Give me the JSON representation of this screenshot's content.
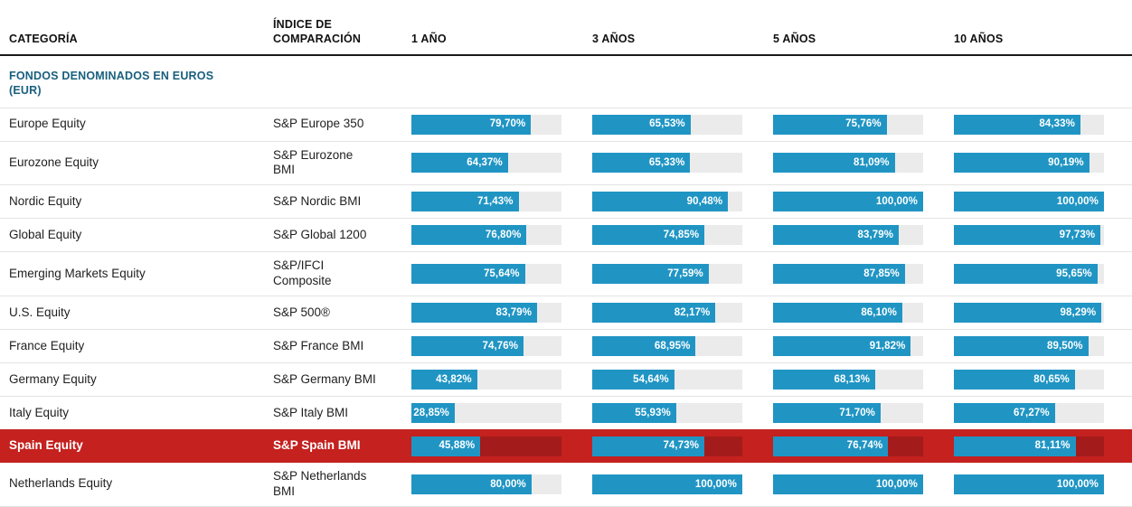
{
  "header": {
    "category_label": "CATEGORÍA",
    "index_label": "ÍNDICE DE COMPARACIÓN",
    "period_labels": [
      "1 AÑO",
      "3 AÑOS",
      "5 AÑOS",
      "10 AÑOS"
    ]
  },
  "section_title": "FONDOS DENOMINADOS EN EUROS (EUR)",
  "chart_data": {
    "type": "bar",
    "subtype": "table-of-horizontal-bars",
    "unit": "%",
    "decimal_separator": ",",
    "xlim": [
      0,
      100
    ],
    "categories": [
      "Europe Equity",
      "Eurozone Equity",
      "Nordic Equity",
      "Global Equity",
      "Emerging Markets Equity",
      "U.S. Equity",
      "France Equity",
      "Germany Equity",
      "Italy Equity",
      "Spain Equity",
      "Netherlands Equity"
    ],
    "comparison_indices": [
      "S&P Europe 350",
      "S&P Eurozone BMI",
      "S&P Nordic BMI",
      "S&P Global 1200",
      "S&P/IFCI Composite",
      "S&P 500®",
      "S&P France BMI",
      "S&P Germany BMI",
      "S&P Italy BMI",
      "S&P Spain BMI",
      "S&P Netherlands BMI"
    ],
    "series": [
      {
        "name": "1 AÑO",
        "values": [
          79.7,
          64.37,
          71.43,
          76.8,
          75.64,
          83.79,
          74.76,
          43.82,
          28.85,
          45.88,
          80.0
        ]
      },
      {
        "name": "3 AÑOS",
        "values": [
          65.53,
          65.33,
          90.48,
          74.85,
          77.59,
          82.17,
          68.95,
          54.64,
          55.93,
          74.73,
          100.0
        ]
      },
      {
        "name": "5 AÑOS",
        "values": [
          75.76,
          81.09,
          100.0,
          83.79,
          87.85,
          86.1,
          91.82,
          68.13,
          71.7,
          76.74,
          100.0
        ]
      },
      {
        "name": "10 AÑOS",
        "values": [
          84.33,
          90.19,
          100.0,
          97.73,
          95.65,
          98.29,
          89.5,
          80.65,
          67.27,
          81.11,
          100.0
        ]
      }
    ],
    "highlighted_category": "Spain Equity",
    "legend_position": "none",
    "grid": false
  },
  "colors": {
    "bar_fill": "#2095C4",
    "bar_track": "#EBEBEB",
    "highlight_bg": "#C4211F",
    "highlight_track": "#A31B1B",
    "section_title": "#19607D",
    "separator": "#E3E3E3",
    "header_rule": "#1A1A1A",
    "text": "#1F1F1F"
  }
}
